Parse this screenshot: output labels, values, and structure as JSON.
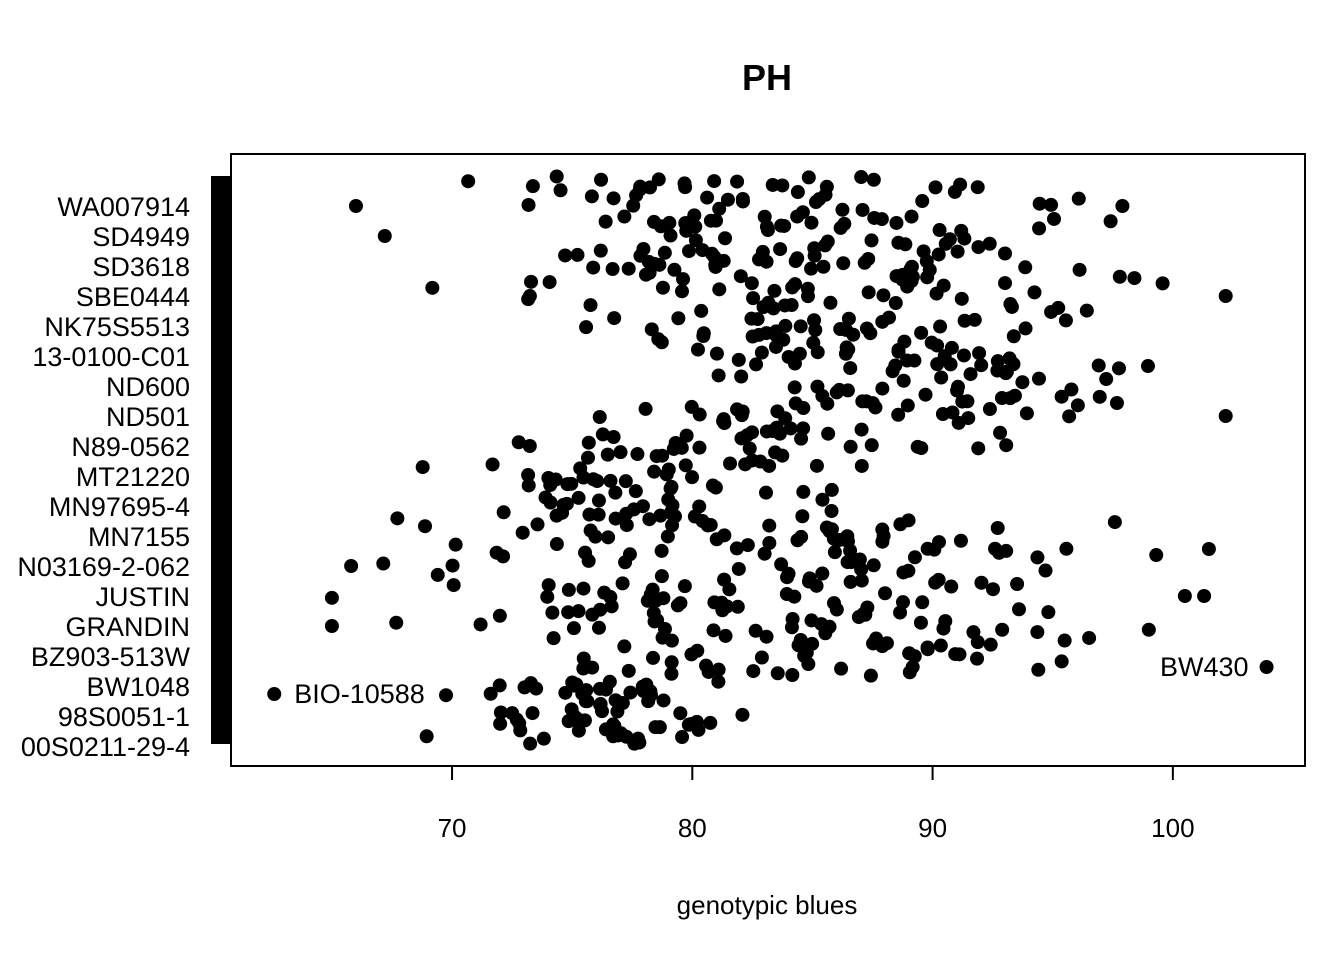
{
  "chart_data": {
    "type": "scatter",
    "title": "PH",
    "xlabel": "genotypic blues",
    "ylabel": "",
    "xlim": [
      60.8,
      105.5
    ],
    "xticks": [
      70,
      80,
      90,
      100
    ],
    "x_tick_labels": [
      "70",
      "80",
      "90",
      "100"
    ],
    "y_labels": [
      "WA007914",
      "SD4949",
      "SD3618",
      "SBE0444",
      "NK75S5513",
      "13-0100-C01",
      "ND600",
      "ND501",
      "N89-0562",
      "MT21220",
      "MN97695-4",
      "MN7155",
      "N03169-2-062",
      "JUSTIN",
      "GRANDIN",
      "BZ903-513W",
      "BW1048",
      "98S0051-1",
      "00S0211-29-4"
    ],
    "annotations": [
      {
        "text": "BIO-10588",
        "x": 62.6,
        "y_label": "BW1048"
      },
      {
        "text": "BW430",
        "x": 103.9,
        "y_label": "BZ903-513W"
      }
    ],
    "point_clusters": [
      {
        "y_range": [
          0.0,
          0.11
        ],
        "x_range": [
          68.0,
          84.0
        ],
        "count": 70
      },
      {
        "y_range": [
          0.12,
          0.2
        ],
        "x_range": [
          71.0,
          100.0
        ],
        "count": 55
      },
      {
        "y_range": [
          0.2,
          0.3
        ],
        "x_range": [
          65.0,
          99.0
        ],
        "count": 80
      },
      {
        "y_range": [
          0.3,
          0.4
        ],
        "x_range": [
          65.5,
          101.5
        ],
        "count": 75
      },
      {
        "y_range": [
          0.4,
          0.52
        ],
        "x_range": [
          68.5,
          88.0
        ],
        "count": 70
      },
      {
        "y_range": [
          0.52,
          0.6
        ],
        "x_range": [
          70.0,
          99.0
        ],
        "count": 55
      },
      {
        "y_range": [
          0.6,
          0.68
        ],
        "x_range": [
          78.5,
          102.5
        ],
        "count": 50
      },
      {
        "y_range": [
          0.68,
          0.76
        ],
        "x_range": [
          73.0,
          98.5
        ],
        "count": 55
      },
      {
        "y_range": [
          0.76,
          0.84
        ],
        "x_range": [
          68.0,
          102.5
        ],
        "count": 60
      },
      {
        "y_range": [
          0.84,
          0.92
        ],
        "x_range": [
          67.0,
          97.0
        ],
        "count": 65
      },
      {
        "y_range": [
          0.92,
          1.0
        ],
        "x_range": [
          66.0,
          98.0
        ],
        "count": 55
      }
    ],
    "outliers": [
      {
        "x": 62.6,
        "y_label": "BW1048"
      },
      {
        "x": 103.9,
        "y_label": "BZ903-513W"
      },
      {
        "x": 102.2,
        "y_label": "SBE0444"
      },
      {
        "x": 102.2,
        "y_label": "ND501"
      },
      {
        "x": 97.9,
        "y_label": "WA007914"
      },
      {
        "x": 101.3,
        "y_label": "JUSTIN"
      },
      {
        "x": 100.5,
        "y_label": "JUSTIN"
      },
      {
        "x": 65.0,
        "y_label": "GRANDIN"
      },
      {
        "x": 65.8,
        "y_label": "N03169-2-062"
      },
      {
        "x": 66.0,
        "y_label": "WA007914"
      },
      {
        "x": 67.2,
        "y_label": "SD4949"
      }
    ],
    "marker": {
      "shape": "filled-circle",
      "color": "#000000"
    },
    "rug": {
      "side": "left",
      "color": "#000000"
    },
    "grid": false,
    "legend": "none"
  }
}
